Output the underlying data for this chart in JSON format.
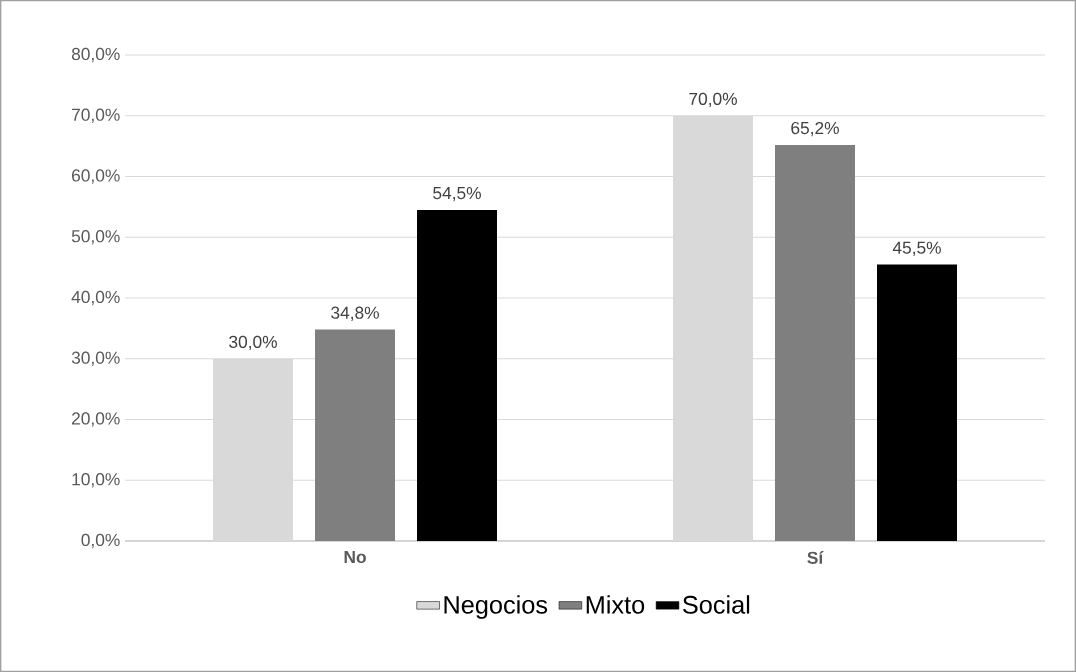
{
  "chart_data": {
    "type": "bar",
    "categories": [
      "No",
      "Sí"
    ],
    "series": [
      {
        "name": "Negocios",
        "color": "#d9d9d9",
        "values": [
          30.0,
          70.0
        ],
        "value_labels": [
          "30,0%",
          "70,0%"
        ]
      },
      {
        "name": "Mixto",
        "color": "#7f7f7f",
        "values": [
          34.8,
          65.2
        ],
        "value_labels": [
          "34,8%",
          "65,2%"
        ]
      },
      {
        "name": "Social",
        "color": "#000000",
        "values": [
          54.5,
          45.5
        ],
        "value_labels": [
          "54,5%",
          "45,5%"
        ]
      }
    ],
    "ylim": [
      0,
      80
    ],
    "yticks": [
      {
        "value": 0,
        "label": "0,0%"
      },
      {
        "value": 10,
        "label": "10,0%"
      },
      {
        "value": 20,
        "label": "20,0%"
      },
      {
        "value": 30,
        "label": "30,0%"
      },
      {
        "value": 40,
        "label": "40,0%"
      },
      {
        "value": 50,
        "label": "50,0%"
      },
      {
        "value": 60,
        "label": "60,0%"
      },
      {
        "value": 70,
        "label": "70,0%"
      },
      {
        "value": 80,
        "label": "80,0%"
      }
    ],
    "grid": "y",
    "legend": "bottom"
  }
}
